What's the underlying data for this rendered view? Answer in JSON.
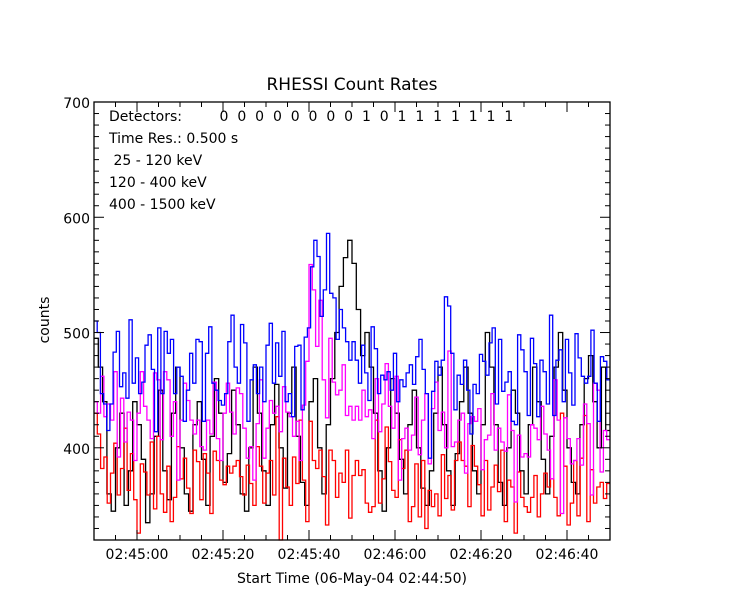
{
  "chart_data": {
    "type": "line",
    "title": "RHESSI Count Rates",
    "xlabel": "Start Time (06-May-04 02:44:50)",
    "ylabel": "counts",
    "xlim_seconds": [
      0,
      120
    ],
    "ylim": [
      320,
      700
    ],
    "x_ticks": [
      {
        "t": 10,
        "label": "02:45:00"
      },
      {
        "t": 30,
        "label": "02:45:20"
      },
      {
        "t": 50,
        "label": "02:45:40"
      },
      {
        "t": 70,
        "label": "02:46:00"
      },
      {
        "t": 90,
        "label": "02:46:20"
      },
      {
        "t": 110,
        "label": "02:46:40"
      }
    ],
    "y_ticks": [
      {
        "v": 400,
        "label": "400"
      },
      {
        "v": 500,
        "label": "500"
      },
      {
        "v": 600,
        "label": "600"
      },
      {
        "v": 700,
        "label": "700"
      }
    ],
    "annotations": {
      "detectors_label": "Detectors:",
      "detectors": [
        "0",
        "0",
        "0",
        "0",
        "0",
        "0",
        "0",
        "0",
        "1",
        "0",
        "1",
        "1",
        "1",
        "1",
        "1",
        "1",
        "1"
      ],
      "time_res": "Time Res.: 0.500 s"
    },
    "series": [
      {
        "name": " 25 - 120 keV",
        "color": "#0000ff",
        "values": [
          510,
          500,
          447,
          438,
          415,
          438,
          483,
          501,
          453,
          465,
          443,
          511,
          456,
          478,
          447,
          457,
          489,
          498,
          468,
          414,
          504,
          447,
          501,
          482,
          494,
          447,
          470,
          462,
          423,
          450,
          482,
          456,
          494,
          492,
          423,
          482,
          505,
          456,
          450,
          441,
          437,
          447,
          492,
          515,
          470,
          456,
          507,
          491,
          423,
          459,
          472,
          447,
          470,
          440,
          489,
          508,
          456,
          491,
          462,
          501,
          440,
          447,
          427,
          488,
          489,
          433,
          496,
          504,
          557,
          580,
          566,
          514,
          537,
          586,
          534,
          530,
          494,
          520,
          504,
          492,
          476,
          492,
          476,
          456,
          489,
          465,
          441,
          505,
          486,
          447,
          463,
          459,
          466,
          450,
          482,
          440,
          459,
          453,
          465,
          472,
          455,
          479,
          494,
          468,
          447,
          391,
          449,
          475,
          463,
          476,
          531,
          523,
          482,
          433,
          463,
          455,
          476,
          450,
          412,
          455,
          447,
          481,
          475,
          463,
          491,
          504,
          438,
          494,
          449,
          457,
          466,
          423,
          420,
          498,
          485,
          466,
          428,
          495,
          473,
          427,
          476,
          466,
          438,
          515,
          428,
          476,
          485,
          440,
          494,
          465,
          437,
          499,
          478,
          462,
          456,
          462,
          502,
          456,
          423,
          479,
          475,
          459
        ]
      },
      {
        "name": "120 - 400 keV",
        "color": "#ff00ff",
        "values": [
          440,
          430,
          462,
          427,
          438,
          424,
          466,
          392,
          443,
          405,
          431,
          424,
          389,
          430,
          466,
          436,
          424,
          408,
          465,
          459,
          407,
          466,
          459,
          410,
          440,
          372,
          424,
          456,
          441,
          424,
          412,
          424,
          401,
          398,
          424,
          412,
          457,
          408,
          389,
          430,
          456,
          431,
          412,
          452,
          447,
          417,
          391,
          401,
          372,
          421,
          459,
          391,
          417,
          441,
          430,
          436,
          414,
          453,
          431,
          427,
          410,
          423,
          389,
          437,
          475,
          559,
          537,
          488,
          528,
          459,
          426,
          495,
          457,
          446,
          450,
          472,
          428,
          436,
          424,
          436,
          424,
          450,
          427,
          433,
          408,
          460,
          414,
          438,
          473,
          436,
          417,
          462,
          372,
          408,
          417,
          398,
          411,
          444,
          394,
          424,
          447,
          386,
          434,
          457,
          415,
          431,
          400,
          484,
          401,
          405,
          424,
          430,
          378,
          421,
          427,
          423,
          434,
          381,
          407,
          411,
          447,
          398,
          417,
          405,
          397,
          446,
          415,
          353,
          411,
          392,
          395,
          392,
          420,
          417,
          407,
          436,
          412,
          398,
          373,
          459,
          424,
          343,
          426,
          408,
          386,
          389,
          408,
          385,
          438,
          421,
          359,
          456,
          450,
          379,
          415,
          407
        ]
      },
      {
        "name": "400 - 1500 keV",
        "color": "#ff0000",
        "values": [
          430,
          412,
          382,
          392,
          352,
          378,
          404,
          359,
          382,
          417,
          363,
          395,
          355,
          326,
          386,
          379,
          359,
          405,
          347,
          410,
          360,
          344,
          384,
          336,
          357,
          401,
          373,
          391,
          365,
          343,
          398,
          388,
          355,
          395,
          378,
          343,
          397,
          389,
          372,
          368,
          384,
          378,
          384,
          389,
          375,
          359,
          385,
          369,
          350,
          401,
          384,
          352,
          378,
          389,
          359,
          427,
          320,
          391,
          366,
          350,
          392,
          369,
          424,
          372,
          336,
          423,
          389,
          382,
          398,
          375,
          333,
          398,
          389,
          357,
          378,
          370,
          398,
          339,
          376,
          389,
          376,
          381,
          352,
          344,
          349,
          424,
          352,
          373,
          418,
          388,
          363,
          357,
          407,
          382,
          398,
          336,
          349,
          386,
          340,
          389,
          330,
          363,
          349,
          360,
          341,
          394,
          356,
          376,
          346,
          389,
          405,
          389,
          384,
          349,
          402,
          384,
          368,
          341,
          389,
          346,
          366,
          385,
          362,
          398,
          336,
          372,
          366,
          326,
          379,
          357,
          349,
          344,
          357,
          376,
          340,
          360,
          378,
          366,
          373,
          357,
          341,
          430,
          384,
          333,
          352,
          389,
          341,
          391,
          428,
          336,
          381,
          352,
          366,
          370,
          356,
          369
        ]
      },
      {
        "name": "",
        "color": "#000000",
        "values": [
          495,
          470,
          440,
          360,
          345,
          400,
          430,
          350,
          380,
          440,
          420,
          390,
          335,
          360,
          410,
          450,
          380,
          355,
          430,
          470,
          400,
          360,
          345,
          420,
          440,
          390,
          350,
          410,
          460,
          430,
          370,
          395,
          450,
          420,
          360,
          345,
          400,
          470,
          430,
          380,
          350,
          420,
          455,
          400,
          365,
          430,
          470,
          410,
          370,
          350,
          440,
          460,
          400,
          360,
          420,
          460,
          500,
          540,
          565,
          580,
          560,
          520,
          480,
          500,
          470,
          430,
          380,
          345,
          400,
          460,
          430,
          390,
          360,
          420,
          450,
          400,
          365,
          350,
          380,
          430,
          470,
          420,
          380,
          350,
          395,
          440,
          470,
          430,
          380,
          360,
          420,
          500,
          470,
          420,
          370,
          350,
          400,
          450,
          430,
          380,
          360,
          420,
          470,
          440,
          390,
          360,
          410,
          470,
          500,
          450,
          400,
          370,
          360,
          420,
          460,
          480,
          440,
          400,
          470,
          415
        ]
      }
    ]
  }
}
